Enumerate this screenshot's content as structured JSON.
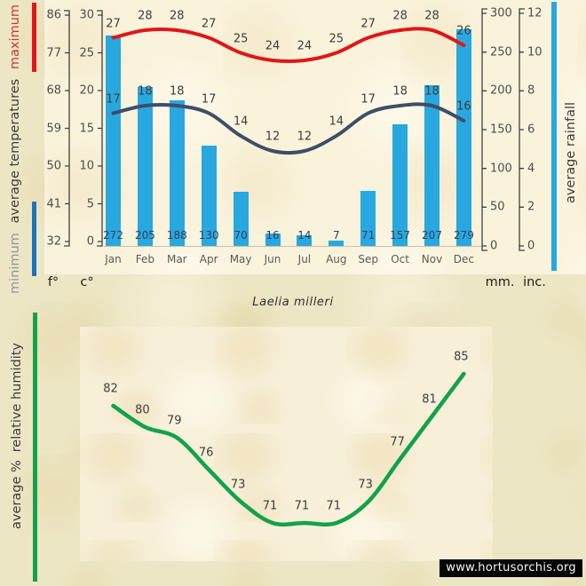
{
  "watermark": "www.hortusorchis.org",
  "labels": {
    "temperature": {
      "minimum": "minimum",
      "middle": "average temperatures",
      "maximum": "maximum"
    },
    "rainfall": "average rainfall",
    "humidity_a": "average %",
    "humidity_b": "relative humidity"
  },
  "colors": {
    "max_line": "#E01717",
    "min_line": "#3E4E68",
    "rain_bar": "#29A8DF",
    "humidity_line": "#11A24B",
    "min_indicator": "#1C74BB",
    "axis": "#3F3F3F",
    "outer_bg": "#EDE6C4",
    "top_panel_bg": "#FAF3DC",
    "bottom_panel_bg": "#F7EFD8"
  },
  "chart_data": [
    {
      "type": "bar",
      "title": "Laelia milleri",
      "categories": [
        "Jan",
        "Feb",
        "Mar",
        "Apr",
        "May",
        "Jun",
        "Jul",
        "Aug",
        "Sep",
        "Oct",
        "Nov",
        "Dec"
      ],
      "series": [
        {
          "name": "maximum temperature",
          "type": "line",
          "unit": "c°",
          "color": "#E01717",
          "values": [
            27,
            28,
            28,
            27,
            25,
            24,
            24,
            25,
            27,
            28,
            28,
            26
          ]
        },
        {
          "name": "minimum temperature",
          "type": "line",
          "unit": "c°",
          "color": "#3E4E68",
          "values": [
            17,
            18,
            18,
            17,
            14,
            12,
            12,
            14,
            17,
            18,
            18,
            16
          ]
        },
        {
          "name": "average rainfall",
          "type": "bar",
          "unit": "mm",
          "color": "#29A8DF",
          "values": [
            272,
            205,
            188,
            130,
            70,
            16,
            14,
            7,
            71,
            157,
            207,
            279
          ]
        }
      ],
      "axes": {
        "left_f": {
          "label": "f°",
          "ticks": [
            86,
            77,
            68,
            59,
            50,
            41,
            32
          ]
        },
        "left_c": {
          "label": "c°",
          "ticks": [
            30,
            25,
            20,
            15,
            10,
            5,
            0
          ],
          "range": [
            0,
            30
          ]
        },
        "right_mm": {
          "label": "mm.",
          "ticks": [
            300,
            250,
            200,
            150,
            100,
            50,
            0
          ],
          "range": [
            0,
            300
          ]
        },
        "right_inc": {
          "label": "inc.",
          "ticks": [
            12,
            10,
            8,
            6,
            4,
            2,
            0
          ],
          "range": [
            0,
            12
          ]
        }
      },
      "legend_position": "side-rotated-labels",
      "grid": false
    },
    {
      "type": "line",
      "title": "average % relative humidity",
      "categories": [
        "Jan",
        "Feb",
        "Mar",
        "Apr",
        "May",
        "Jun",
        "Jul",
        "Aug",
        "Sep",
        "Oct",
        "Nov",
        "Dec"
      ],
      "series": [
        {
          "name": "average % relative humidity",
          "color": "#11A24B",
          "values": [
            82,
            80,
            79,
            76,
            73,
            71,
            71,
            71,
            73,
            77,
            81,
            85
          ]
        }
      ],
      "grid": false,
      "axis_visible": false
    }
  ]
}
